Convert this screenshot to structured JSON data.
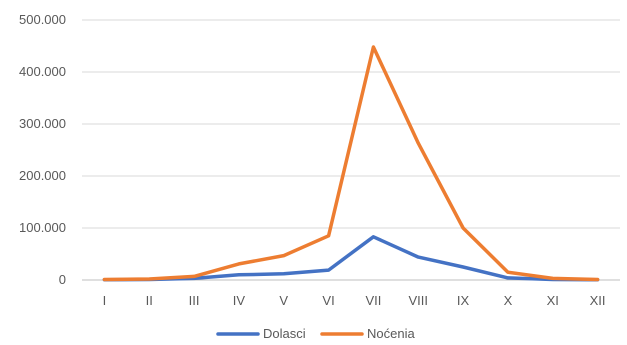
{
  "chart_data": {
    "type": "line",
    "categories": [
      "I",
      "II",
      "III",
      "IV",
      "V",
      "VI",
      "VII",
      "VIII",
      "IX",
      "X",
      "XI",
      "XII"
    ],
    "series": [
      {
        "name": "Dolasci",
        "color": "#4472C4",
        "values": [
          500,
          1000,
          3000,
          10000,
          12000,
          19000,
          83000,
          44000,
          25000,
          4000,
          1000,
          500
        ]
      },
      {
        "name": "Noćenia",
        "color": "#ED7D31",
        "values": [
          1000,
          2000,
          7000,
          31000,
          47000,
          85000,
          448000,
          263000,
          100000,
          15000,
          3000,
          1000
        ]
      }
    ],
    "yticks": [
      "0",
      "100.000",
      "200.000",
      "300.000",
      "400.000",
      "500.000"
    ],
    "ytick_values": [
      0,
      100000,
      200000,
      300000,
      400000,
      500000
    ],
    "ylim": [
      0,
      500000
    ],
    "grid": true,
    "legend": "bottom"
  }
}
